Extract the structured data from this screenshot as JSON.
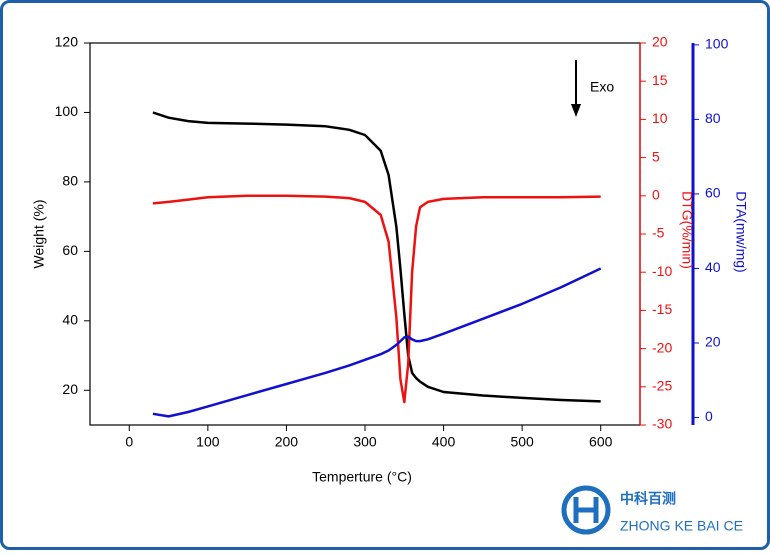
{
  "chart_data": {
    "type": "line",
    "xlabel": "Temperture (°C)",
    "ylabel": "Weight (%)",
    "y2label": "DTG(%/min)",
    "y3label": "DTA(mw/mg)",
    "annotation": "Exo",
    "x": [
      30,
      50,
      75,
      100,
      150,
      200,
      250,
      280,
      300,
      320,
      330,
      340,
      345,
      350,
      355,
      360,
      365,
      370,
      380,
      400,
      450,
      500,
      550,
      600
    ],
    "series": [
      {
        "name": "Weight",
        "color": "#000000",
        "axis": "y",
        "values": [
          100,
          98.5,
          97.5,
          97,
          96.8,
          96.5,
          96,
          95,
          93.5,
          89,
          82,
          67,
          55,
          42,
          30,
          25,
          23.5,
          22.5,
          21,
          19.5,
          18.5,
          17.8,
          17.2,
          16.8
        ]
      },
      {
        "name": "DTG",
        "color": "#ee1111",
        "axis": "y2",
        "values": [
          -1,
          -0.8,
          -0.5,
          -0.2,
          0,
          0,
          -0.1,
          -0.3,
          -0.8,
          -2.5,
          -6,
          -16,
          -24,
          -27,
          -22,
          -10,
          -4,
          -1.5,
          -0.8,
          -0.4,
          -0.2,
          -0.2,
          -0.2,
          -0.1
        ]
      },
      {
        "name": "DTA",
        "color": "#1010d0",
        "axis": "y3",
        "values": [
          1,
          0.3,
          1.5,
          3,
          6,
          9,
          12,
          14,
          15.5,
          17,
          18,
          19.5,
          20.5,
          21.5,
          21.7,
          21,
          20.5,
          20.5,
          21,
          22.5,
          26.5,
          30.5,
          35,
          40
        ]
      }
    ],
    "xlim": [
      -50,
      650
    ],
    "xticks": [
      0,
      100,
      200,
      300,
      400,
      500,
      600
    ],
    "ylim": [
      10,
      120
    ],
    "yticks": [
      20,
      40,
      60,
      80,
      100,
      120
    ],
    "y2lim": [
      -30,
      20
    ],
    "y2ticks": [
      -30,
      -25,
      -20,
      -15,
      -10,
      -5,
      0,
      5,
      10,
      15,
      20
    ],
    "y3lim": [
      -2,
      100.5
    ],
    "y3ticks": [
      0,
      20,
      40,
      60,
      80,
      100
    ]
  },
  "logo": {
    "title": "中科百测",
    "subtitle": "ZHONG KE BAI CE"
  }
}
